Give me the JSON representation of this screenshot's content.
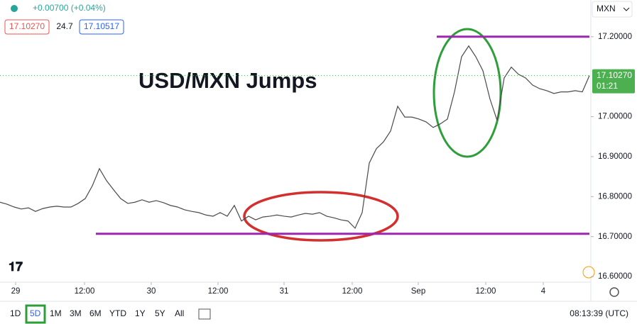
{
  "header": {
    "change": "+0.00700 (+0.04%)",
    "bid": "17.10270",
    "spread": "24.7",
    "ask": "17.10517"
  },
  "symbol_menu": "MXN",
  "chart_data": {
    "type": "line",
    "annotation": "USD/MXN Jumps",
    "color": "#4a4a4a",
    "values": [
      16.786,
      16.781,
      16.774,
      16.769,
      16.772,
      16.763,
      16.77,
      16.774,
      16.776,
      16.774,
      16.774,
      16.783,
      16.795,
      16.827,
      16.87,
      16.84,
      16.817,
      16.795,
      16.783,
      16.786,
      16.792,
      16.786,
      16.79,
      16.785,
      16.778,
      16.774,
      16.767,
      16.763,
      16.76,
      16.754,
      16.751,
      16.76,
      16.751,
      16.778,
      16.739,
      16.751,
      16.742,
      16.749,
      16.751,
      16.754,
      16.751,
      16.749,
      16.754,
      16.758,
      16.756,
      16.76,
      16.751,
      16.747,
      16.742,
      16.739,
      16.721,
      16.76,
      16.884,
      16.92,
      16.937,
      16.964,
      17.026,
      16.999,
      16.999,
      16.994,
      16.987,
      16.973,
      16.982,
      16.994,
      17.062,
      17.15,
      17.177,
      17.15,
      17.115,
      17.044,
      16.991,
      17.097,
      17.124,
      17.106,
      17.097,
      17.079,
      17.07,
      17.065,
      17.058,
      17.062,
      17.062,
      17.065,
      17.062,
      17.1027
    ],
    "xlim": [
      0,
      83
    ],
    "xticks": [
      {
        "value": 2.2,
        "label": "29"
      },
      {
        "value": 11.9,
        "label": "12:00"
      },
      {
        "value": 21.3,
        "label": "30"
      },
      {
        "value": 30.7,
        "label": "12:00"
      },
      {
        "value": 40,
        "label": "31"
      },
      {
        "value": 49.6,
        "label": "12:00"
      },
      {
        "value": 58.9,
        "label": "Sep"
      },
      {
        "value": 68.4,
        "label": "12:00"
      },
      {
        "value": 76.5,
        "label": "4"
      }
    ],
    "ylim": [
      16.586,
      17.283
    ],
    "yticks": [
      {
        "value": 16.6,
        "label": "16.60000"
      },
      {
        "value": 16.7,
        "label": "16.70000"
      },
      {
        "value": 16.8,
        "label": "16.80000"
      },
      {
        "value": 16.9,
        "label": "16.90000"
      },
      {
        "value": 17.0,
        "label": "17.00000"
      },
      {
        "value": 17.2,
        "label": "17.20000"
      }
    ],
    "levels": [
      {
        "value": 17.2,
        "color": "#9c27b0"
      },
      {
        "value": 16.707,
        "color": "#9c27b0"
      }
    ],
    "last_value_label": "17.10270",
    "countdown": "01:21",
    "last_color": "#4caf50"
  },
  "toolbar": {
    "ranges": [
      "1D",
      "5D",
      "1M",
      "3M",
      "6M",
      "YTD",
      "1Y",
      "5Y",
      "All"
    ],
    "selected": 1,
    "clock": "08:13:39 (UTC)"
  }
}
